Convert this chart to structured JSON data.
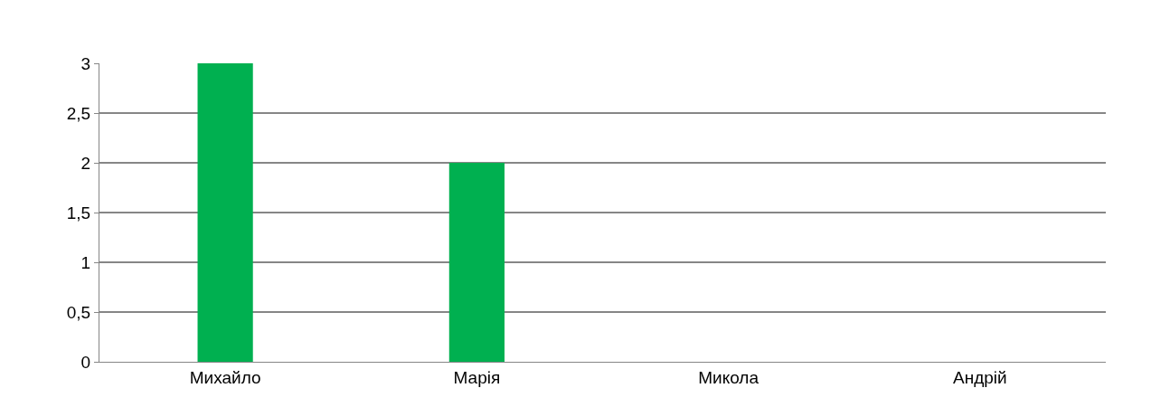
{
  "chart_data": {
    "type": "bar",
    "categories": [
      "Михайло",
      "Марія",
      "Микола",
      "Андрій"
    ],
    "values": [
      3,
      2,
      0,
      0
    ],
    "color": "#00b050",
    "ylim": [
      0,
      3
    ],
    "yticks": [
      0,
      {
        "value": 0.5,
        "label": "0,5"
      },
      1,
      {
        "value": 1.5,
        "label": "1,5"
      },
      2,
      {
        "value": 2.5,
        "label": "2,5"
      },
      3
    ],
    "grid": "y"
  }
}
